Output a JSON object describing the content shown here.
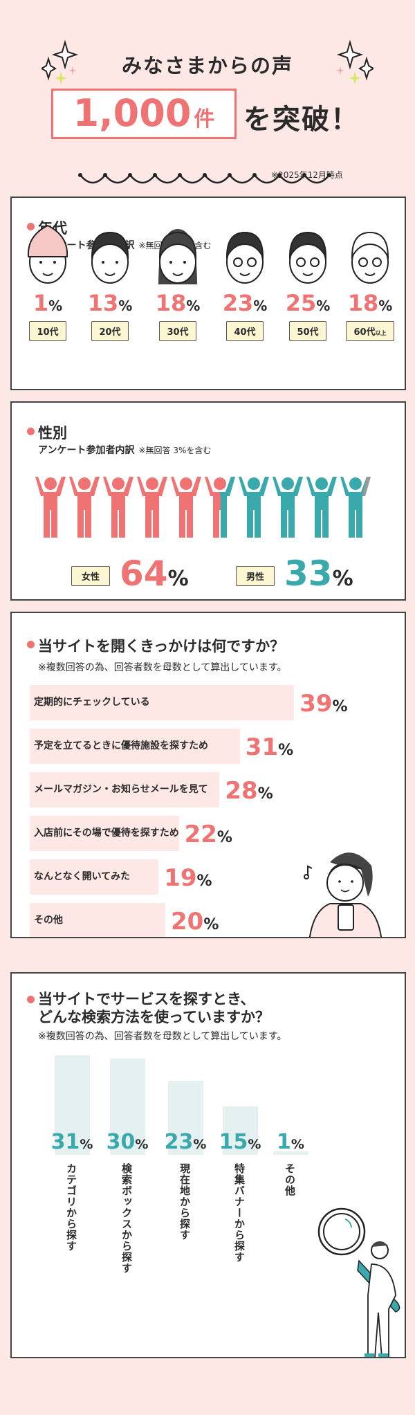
{
  "header": {
    "title": "みなさまからの声",
    "count": "1,000",
    "count_unit": "件",
    "suffix": "を突破！",
    "note": "※2025年12月時点"
  },
  "age": {
    "title": "年代",
    "subtitle": "アンケート参加者内訳",
    "note": "※無回答 1%を含む",
    "items": [
      {
        "label": "10代",
        "value": "1",
        "suffix": ""
      },
      {
        "label": "20代",
        "value": "13",
        "suffix": ""
      },
      {
        "label": "30代",
        "value": "18",
        "suffix": ""
      },
      {
        "label": "40代",
        "value": "23",
        "suffix": ""
      },
      {
        "label": "50代",
        "value": "25",
        "suffix": ""
      },
      {
        "label": "60代",
        "value": "18",
        "suffix": "以上"
      }
    ]
  },
  "gender": {
    "title": "性別",
    "subtitle": "アンケート参加者内訳",
    "note": "※無回答 3%を含む",
    "female_label": "女性",
    "female_value": "64",
    "male_label": "男性",
    "male_value": "33",
    "female_color": "#f07373",
    "male_color": "#3aa9ab"
  },
  "reason": {
    "title": "当サイトを開くきっかけは何ですか？",
    "note": "※複数回答の為、回答者数を母数として算出しています。",
    "chart_data": {
      "type": "bar",
      "orientation": "horizontal",
      "categories": [
        "定期的にチェックしている",
        "予定を立てるときに優待施設を探すため",
        "メールマガジン・お知らせメールを見て",
        "入店前にその場で優待を探すため",
        "なんとなく開いてみた",
        "その他"
      ],
      "values": [
        39,
        31,
        28,
        22,
        19,
        20
      ],
      "unit": "%"
    }
  },
  "search": {
    "title_line1": "当サイトでサービスを探すとき、",
    "title_line2": "どんな検索方法を使っていますか？",
    "note": "※複数回答の為、回答者数を母数として算出しています。",
    "chart_data": {
      "type": "bar",
      "orientation": "vertical",
      "categories": [
        "カテゴリから探す",
        "検索ボックスから探す",
        "現在地から探す",
        "特集バナーから探す",
        "その他"
      ],
      "values": [
        31,
        30,
        23,
        15,
        1
      ],
      "unit": "%"
    }
  },
  "percent_sign": "%",
  "colors": {
    "background": "#fde8e6",
    "accent": "#f07373",
    "teal": "#3aa9ab"
  }
}
